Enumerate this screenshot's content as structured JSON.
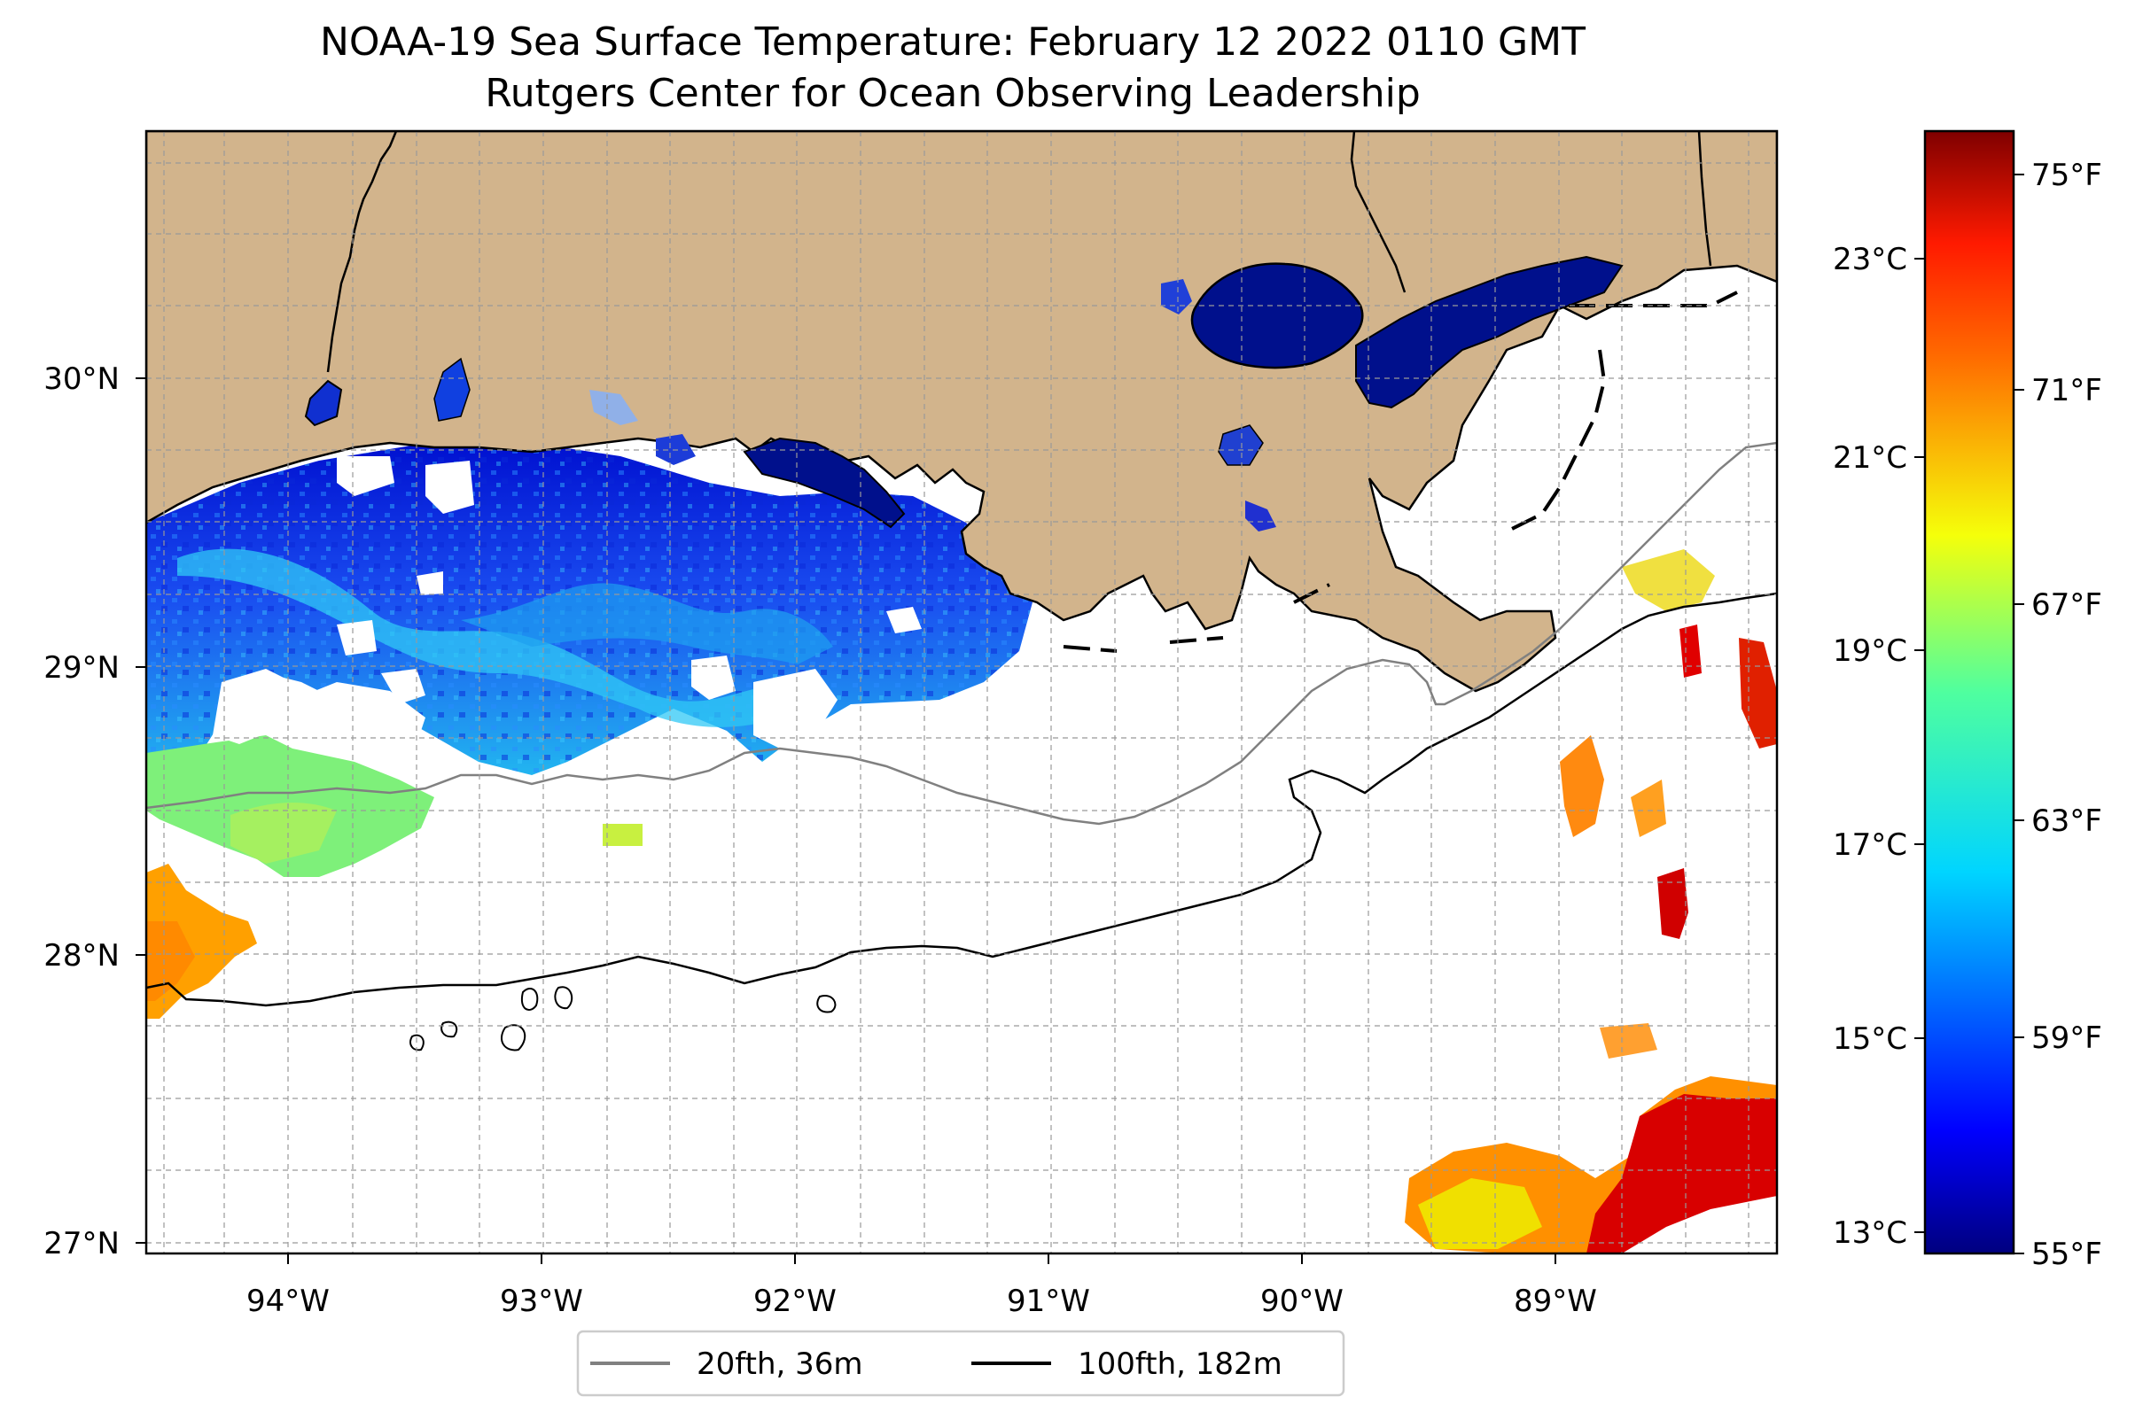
{
  "title": {
    "line1": "NOAA-19 Sea Surface Temperature: February 12 2022 0110 GMT",
    "line2": "Rutgers Center for Ocean Observing Leadership"
  },
  "map": {
    "lon_ticks": [
      "94°W",
      "93°W",
      "92°W",
      "91°W",
      "90°W",
      "89°W"
    ],
    "lat_ticks": [
      "30°N",
      "29°N",
      "28°N",
      "27°N"
    ],
    "land_color": "#d2b48c",
    "no_data_color": "#ffffff",
    "gridlines": "dashed grey",
    "colormap": "jet"
  },
  "colorbar": {
    "celsius_ticks": [
      "23°C",
      "21°C",
      "19°C",
      "17°C",
      "15°C",
      "13°C"
    ],
    "fahrenheit_ticks": [
      "75°F",
      "71°F",
      "67°F",
      "63°F",
      "59°F",
      "55°F"
    ],
    "min_f": 55,
    "max_f": 76
  },
  "legend": {
    "placement": "bottom-center",
    "items": [
      {
        "label": "20fth, 36m",
        "color": "#808080"
      },
      {
        "label": "100fth, 182m",
        "color": "#000000"
      }
    ]
  }
}
